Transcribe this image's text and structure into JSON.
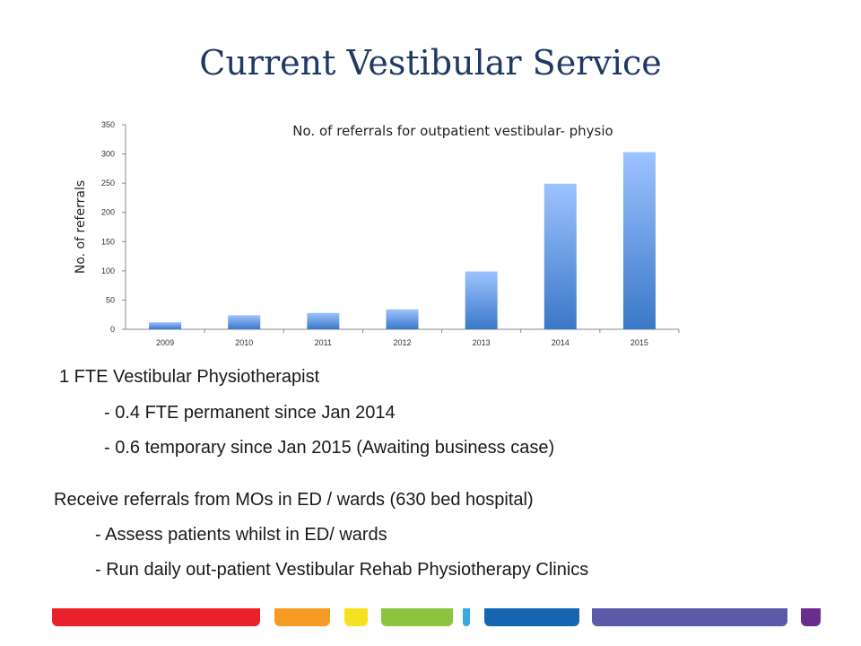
{
  "title": "Current Vestibular Service",
  "chart_data": {
    "type": "bar",
    "title": "No. of referrals for outpatient vestibular- physio",
    "xlabel": "",
    "ylabel": "No. of referrals",
    "categories": [
      "2009",
      "2010",
      "2011",
      "2012",
      "2013",
      "2014",
      "2015"
    ],
    "values": [
      12,
      24,
      28,
      34,
      99,
      249,
      303
    ],
    "ylim": [
      0,
      350
    ],
    "yticks": [
      0,
      50,
      100,
      150,
      200,
      250,
      300,
      350
    ],
    "grid": false,
    "bar_color_top": "#9dc3ff",
    "bar_color_bottom": "#3a78c8"
  },
  "staffing": {
    "heading": "1 FTE Vestibular Physiotherapist",
    "line1": "- 0.4 FTE permanent since Jan 2014",
    "line2": "- 0.6 temporary since Jan 2015 (Awaiting business case)"
  },
  "referrals": {
    "heading": "Receive referrals from MOs in ED / wards (630 bed hospital)",
    "line1": "- Assess patients whilst in ED/ wards",
    "line2": "- Run daily out-patient Vestibular Rehab Physiotherapy Clinics"
  },
  "footer_colors": [
    "#e8212a",
    "#f59a23",
    "#f5e11f",
    "#8bc43f",
    "#3aa9df",
    "#1565b0",
    "#5a5aa8",
    "#6a2d8f"
  ]
}
